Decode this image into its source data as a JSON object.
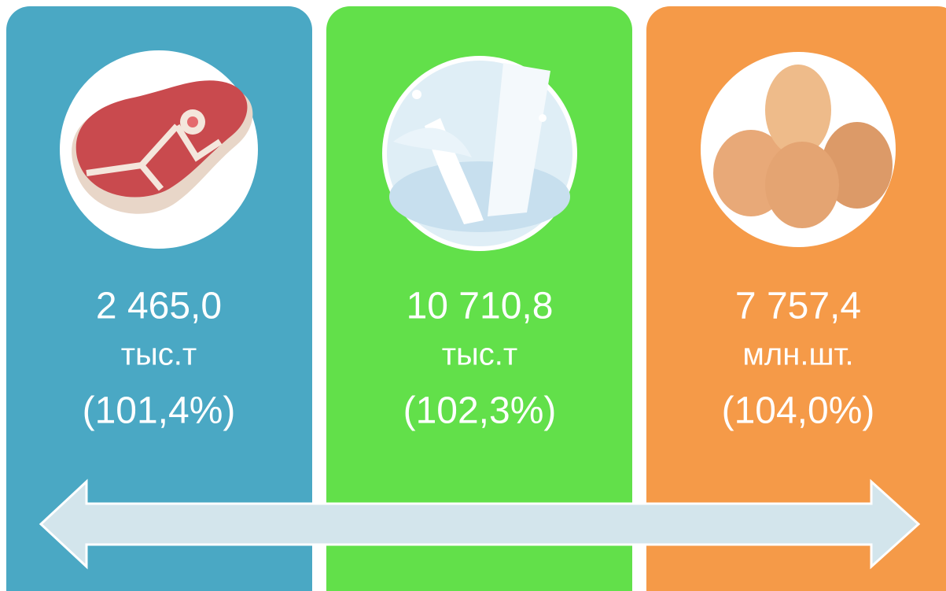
{
  "cards": [
    {
      "value": "2 465,0",
      "unit": "тыс.т",
      "change": "(101,4%)"
    },
    {
      "value": "10 710,8",
      "unit": "тыс.т",
      "change": "(102,3%)"
    },
    {
      "value": "7 757,4",
      "unit": "млн.шт.",
      "change": "(104,0%)"
    }
  ]
}
